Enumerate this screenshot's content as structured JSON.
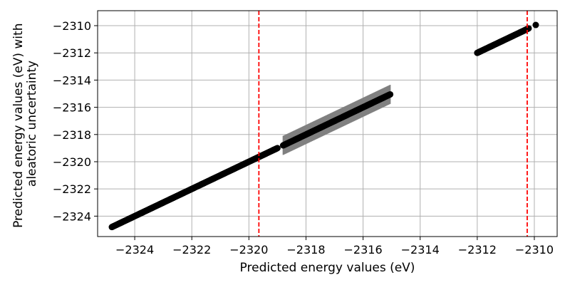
{
  "chart_data": {
    "type": "scatter",
    "title": "",
    "xlabel": "Predicted energy values (eV)",
    "ylabel": [
      "Predicted energy values (eV) with",
      "aleatoric uncertainty"
    ],
    "xlim": [
      -2325.3,
      -2309.2
    ],
    "ylim": [
      -2325.5,
      -2308.9
    ],
    "grid": true,
    "x_ticks": [
      -2324,
      -2322,
      -2320,
      -2318,
      -2316,
      -2314,
      -2312,
      -2310
    ],
    "x_tick_labels": [
      "−2324",
      "−2322",
      "−2320",
      "−2318",
      "−2316",
      "−2314",
      "−2312",
      "−2310"
    ],
    "y_ticks": [
      -2324,
      -2322,
      -2320,
      -2318,
      -2316,
      -2314,
      -2312,
      -2310
    ],
    "y_tick_labels": [
      "−2324",
      "−2322",
      "−2320",
      "−2318",
      "−2316",
      "−2314",
      "−2312",
      "−2310"
    ],
    "series": [
      {
        "marker_color": "#000000",
        "errorbar_color": "#808080",
        "segments": [
          {
            "x_start": -2324.8,
            "x_end": -2319.0,
            "y_start": -2324.8,
            "y_end": -2319.0,
            "uncertainty": 0.05
          },
          {
            "x_start": -2318.8,
            "x_end": -2315.05,
            "y_start": -2318.8,
            "y_end": -2315.05,
            "uncertainty": 0.7
          },
          {
            "x_start": -2312.0,
            "x_end": -2310.2,
            "y_start": -2312.0,
            "y_end": -2310.2,
            "uncertainty": 0.05
          }
        ],
        "extra_points": [
          {
            "x": -2309.95,
            "y": -2309.95
          }
        ]
      }
    ],
    "vlines": [
      {
        "x": -2319.65,
        "color": "#ff0000",
        "style": "dashed"
      },
      {
        "x": -2310.25,
        "color": "#ff0000",
        "style": "dashed"
      }
    ]
  }
}
